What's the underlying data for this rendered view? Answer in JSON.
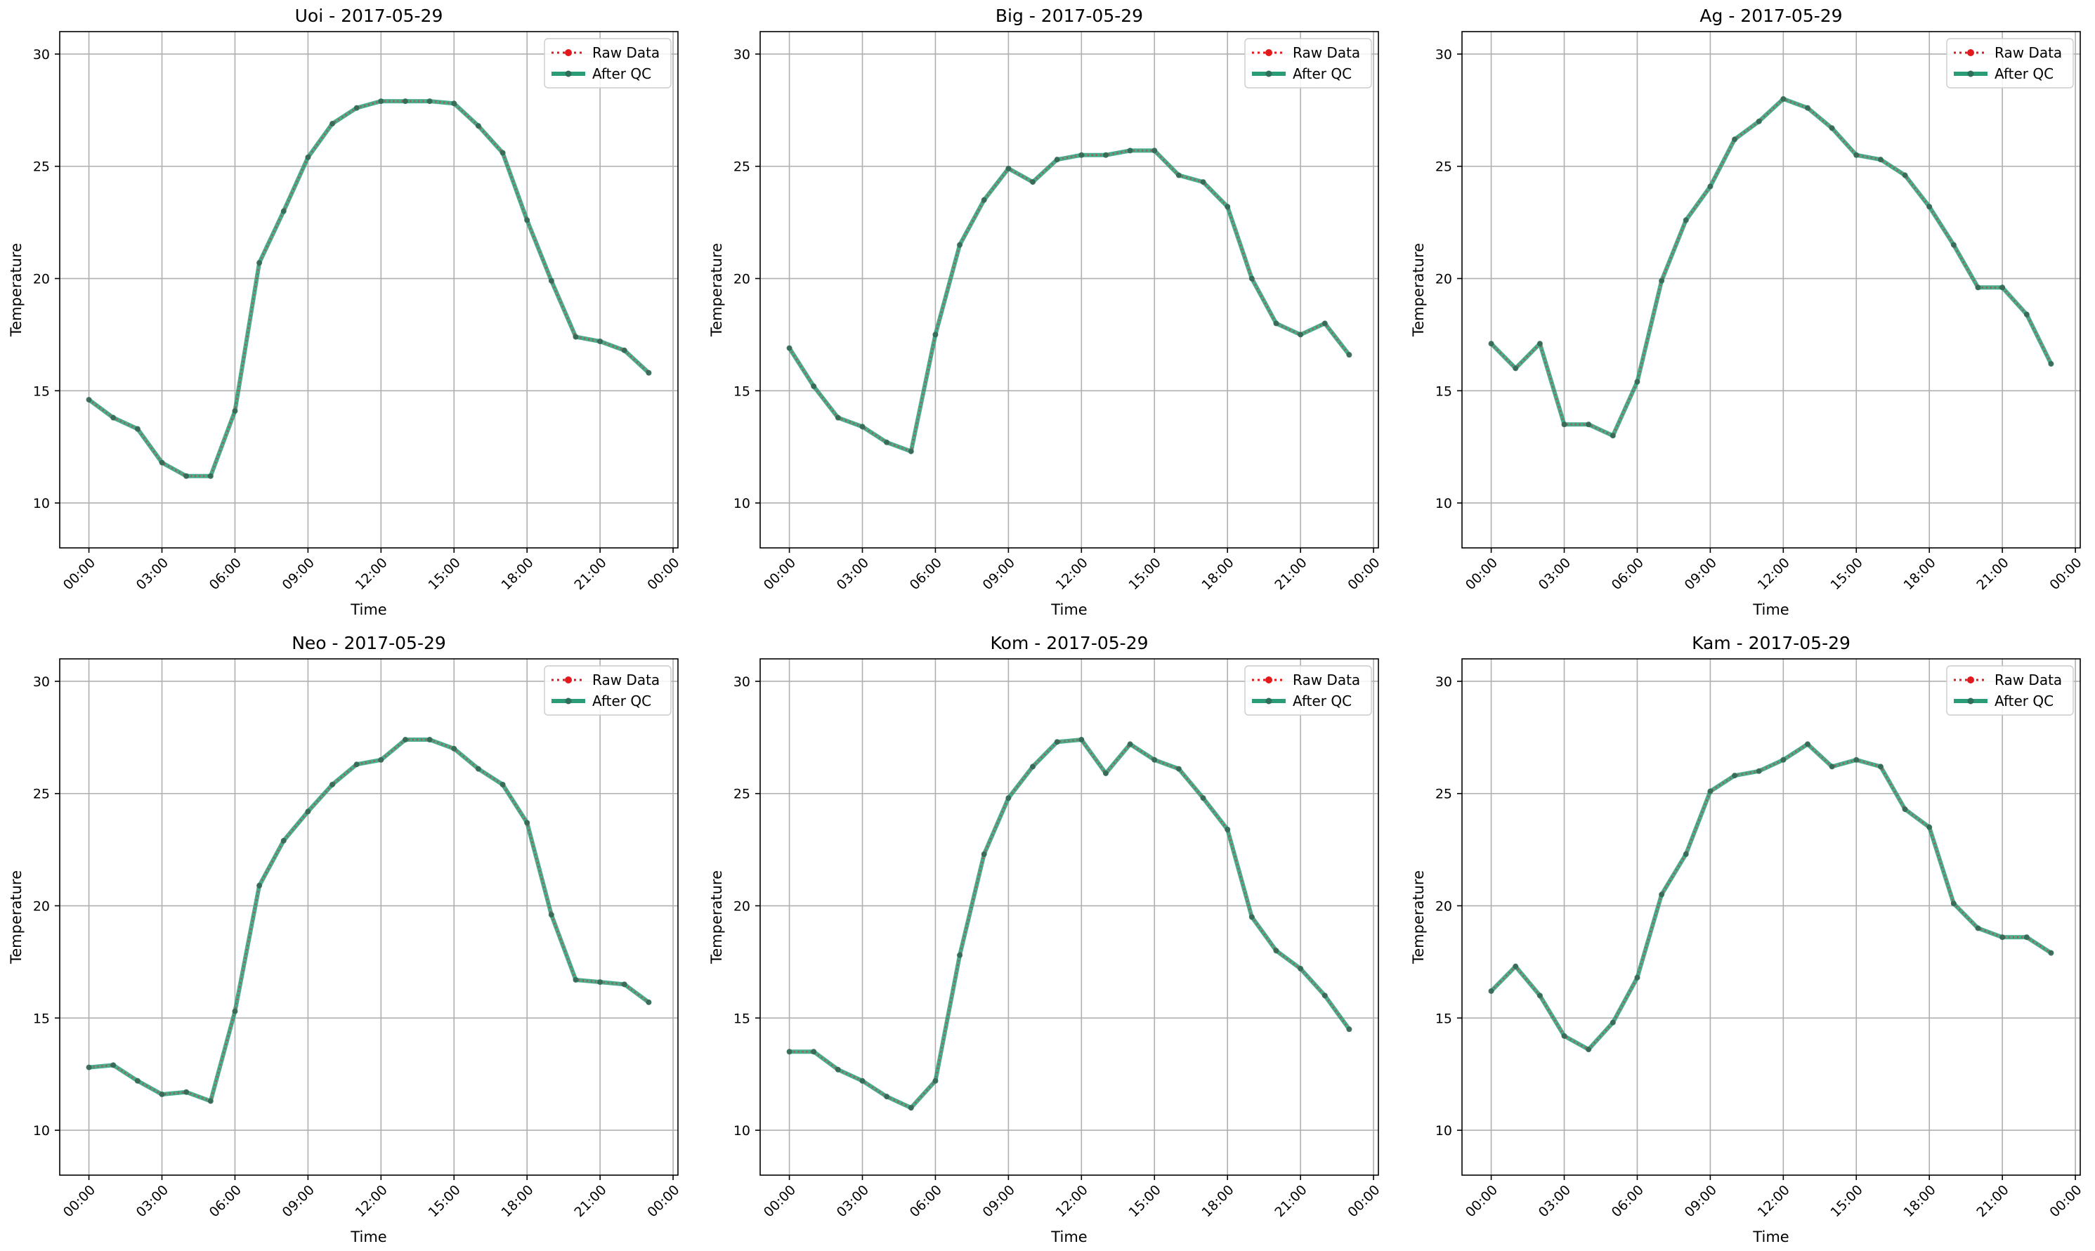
{
  "colors": {
    "raw": "#e31a1c",
    "qc": "#2a9d78",
    "grid": "#b0b0b0",
    "axes": "#000000"
  },
  "chart_data": [
    {
      "type": "line",
      "title": "Uoi - 2017-05-29",
      "xlabel": "Time",
      "ylabel": "Temperature",
      "x": [
        0,
        1,
        2,
        3,
        4,
        5,
        6,
        7,
        8,
        9,
        10,
        11,
        12,
        13,
        14,
        15,
        16,
        17,
        18,
        19,
        20,
        21,
        22,
        23
      ],
      "x_tick_labels": [
        "00:00",
        "03:00",
        "06:00",
        "09:00",
        "12:00",
        "15:00",
        "18:00",
        "21:00",
        "00:00"
      ],
      "y_ticks": [
        10,
        15,
        20,
        25,
        30
      ],
      "ylim": [
        8,
        31
      ],
      "xlim": [
        -1.2,
        24.2
      ],
      "grid": true,
      "legend": "top-right",
      "series": [
        {
          "name": "Raw Data",
          "values": [
            14.6,
            13.8,
            13.3,
            11.8,
            11.2,
            11.2,
            14.1,
            20.7,
            23.0,
            25.4,
            26.9,
            27.6,
            27.9,
            27.9,
            27.9,
            27.8,
            26.8,
            25.6,
            22.6,
            19.9,
            17.4,
            17.2,
            16.8,
            15.8
          ]
        },
        {
          "name": "After QC",
          "values": [
            14.6,
            13.8,
            13.3,
            11.8,
            11.2,
            11.2,
            14.1,
            20.7,
            23.0,
            25.4,
            26.9,
            27.6,
            27.9,
            27.9,
            27.9,
            27.8,
            26.8,
            25.6,
            22.6,
            19.9,
            17.4,
            17.2,
            16.8,
            15.8
          ]
        }
      ]
    },
    {
      "type": "line",
      "title": "Big - 2017-05-29",
      "xlabel": "Time",
      "ylabel": "Temperature",
      "x": [
        0,
        1,
        2,
        3,
        4,
        5,
        6,
        7,
        8,
        9,
        10,
        11,
        12,
        13,
        14,
        15,
        16,
        17,
        18,
        19,
        20,
        21,
        22,
        23
      ],
      "x_tick_labels": [
        "00:00",
        "03:00",
        "06:00",
        "09:00",
        "12:00",
        "15:00",
        "18:00",
        "21:00",
        "00:00"
      ],
      "y_ticks": [
        10,
        15,
        20,
        25,
        30
      ],
      "ylim": [
        8,
        31
      ],
      "xlim": [
        -1.2,
        24.2
      ],
      "grid": true,
      "legend": "top-right",
      "series": [
        {
          "name": "Raw Data",
          "values": [
            16.9,
            15.2,
            13.8,
            13.4,
            12.7,
            12.3,
            17.5,
            21.5,
            23.5,
            24.9,
            24.3,
            25.3,
            25.5,
            25.5,
            25.7,
            25.7,
            24.6,
            24.3,
            23.2,
            20.0,
            18.0,
            17.5,
            18.0,
            16.6
          ]
        },
        {
          "name": "After QC",
          "values": [
            16.9,
            15.2,
            13.8,
            13.4,
            12.7,
            12.3,
            17.5,
            21.5,
            23.5,
            24.9,
            24.3,
            25.3,
            25.5,
            25.5,
            25.7,
            25.7,
            24.6,
            24.3,
            23.2,
            20.0,
            18.0,
            17.5,
            18.0,
            16.6
          ]
        }
      ]
    },
    {
      "type": "line",
      "title": "Ag - 2017-05-29",
      "xlabel": "Time",
      "ylabel": "Temperature",
      "x": [
        0,
        1,
        2,
        3,
        4,
        5,
        6,
        7,
        8,
        9,
        10,
        11,
        12,
        13,
        14,
        15,
        16,
        17,
        18,
        19,
        20,
        21,
        22,
        23
      ],
      "x_tick_labels": [
        "00:00",
        "03:00",
        "06:00",
        "09:00",
        "12:00",
        "15:00",
        "18:00",
        "21:00",
        "00:00"
      ],
      "y_ticks": [
        10,
        15,
        20,
        25,
        30
      ],
      "ylim": [
        8,
        31
      ],
      "xlim": [
        -1.2,
        24.2
      ],
      "grid": true,
      "legend": "top-right",
      "series": [
        {
          "name": "Raw Data",
          "values": [
            17.1,
            16.0,
            17.1,
            13.5,
            13.5,
            13.0,
            15.4,
            19.9,
            22.6,
            24.1,
            26.2,
            27.0,
            28.0,
            27.6,
            26.7,
            25.5,
            25.3,
            24.6,
            23.2,
            21.5,
            19.6,
            19.6,
            18.4,
            16.2
          ]
        },
        {
          "name": "After QC",
          "values": [
            17.1,
            16.0,
            17.1,
            13.5,
            13.5,
            13.0,
            15.4,
            19.9,
            22.6,
            24.1,
            26.2,
            27.0,
            28.0,
            27.6,
            26.7,
            25.5,
            25.3,
            24.6,
            23.2,
            21.5,
            19.6,
            19.6,
            18.4,
            16.2
          ]
        }
      ]
    },
    {
      "type": "line",
      "title": "Neo - 2017-05-29",
      "xlabel": "Time",
      "ylabel": "Temperature",
      "x": [
        0,
        1,
        2,
        3,
        4,
        5,
        6,
        7,
        8,
        9,
        10,
        11,
        12,
        13,
        14,
        15,
        16,
        17,
        18,
        19,
        20,
        21,
        22,
        23
      ],
      "x_tick_labels": [
        "00:00",
        "03:00",
        "06:00",
        "09:00",
        "12:00",
        "15:00",
        "18:00",
        "21:00",
        "00:00"
      ],
      "y_ticks": [
        10,
        15,
        20,
        25,
        30
      ],
      "ylim": [
        8,
        31
      ],
      "xlim": [
        -1.2,
        24.2
      ],
      "grid": true,
      "legend": "top-right",
      "series": [
        {
          "name": "Raw Data",
          "values": [
            12.8,
            12.9,
            12.2,
            11.6,
            11.7,
            11.3,
            15.3,
            20.9,
            22.9,
            24.2,
            25.4,
            26.3,
            26.5,
            27.4,
            27.4,
            27.0,
            26.1,
            25.4,
            23.7,
            19.6,
            16.7,
            16.6,
            16.5,
            15.7
          ]
        },
        {
          "name": "After QC",
          "values": [
            12.8,
            12.9,
            12.2,
            11.6,
            11.7,
            11.3,
            15.3,
            20.9,
            22.9,
            24.2,
            25.4,
            26.3,
            26.5,
            27.4,
            27.4,
            27.0,
            26.1,
            25.4,
            23.7,
            19.6,
            16.7,
            16.6,
            16.5,
            15.7
          ]
        }
      ]
    },
    {
      "type": "line",
      "title": "Kom - 2017-05-29",
      "xlabel": "Time",
      "ylabel": "Temperature",
      "x": [
        0,
        1,
        2,
        3,
        4,
        5,
        6,
        7,
        8,
        9,
        10,
        11,
        12,
        13,
        14,
        15,
        16,
        17,
        18,
        19,
        20,
        21,
        22,
        23
      ],
      "x_tick_labels": [
        "00:00",
        "03:00",
        "06:00",
        "09:00",
        "12:00",
        "15:00",
        "18:00",
        "21:00",
        "00:00"
      ],
      "y_ticks": [
        10,
        15,
        20,
        25,
        30
      ],
      "ylim": [
        8,
        31
      ],
      "xlim": [
        -1.2,
        24.2
      ],
      "grid": true,
      "legend": "top-right",
      "series": [
        {
          "name": "Raw Data",
          "values": [
            13.5,
            13.5,
            12.7,
            12.2,
            11.5,
            11.0,
            12.2,
            17.8,
            22.3,
            24.8,
            26.2,
            27.3,
            27.4,
            25.9,
            27.2,
            26.5,
            26.1,
            24.8,
            23.4,
            19.5,
            18.0,
            17.2,
            16.0,
            14.5
          ]
        },
        {
          "name": "After QC",
          "values": [
            13.5,
            13.5,
            12.7,
            12.2,
            11.5,
            11.0,
            12.2,
            17.8,
            22.3,
            24.8,
            26.2,
            27.3,
            27.4,
            25.9,
            27.2,
            26.5,
            26.1,
            24.8,
            23.4,
            19.5,
            18.0,
            17.2,
            16.0,
            14.5
          ]
        }
      ]
    },
    {
      "type": "line",
      "title": "Kam - 2017-05-29",
      "xlabel": "Time",
      "ylabel": "Temperature",
      "x": [
        0,
        1,
        2,
        3,
        4,
        5,
        6,
        7,
        8,
        9,
        10,
        11,
        12,
        13,
        14,
        15,
        16,
        17,
        18,
        19,
        20,
        21,
        22,
        23
      ],
      "x_tick_labels": [
        "00:00",
        "03:00",
        "06:00",
        "09:00",
        "12:00",
        "15:00",
        "18:00",
        "21:00",
        "00:00"
      ],
      "y_ticks": [
        10,
        15,
        20,
        25,
        30
      ],
      "ylim": [
        8,
        31
      ],
      "xlim": [
        -1.2,
        24.2
      ],
      "grid": true,
      "legend": "top-right",
      "series": [
        {
          "name": "Raw Data",
          "values": [
            16.2,
            17.3,
            16.0,
            14.2,
            13.6,
            14.8,
            16.8,
            20.5,
            22.3,
            25.1,
            25.8,
            26.0,
            26.5,
            27.2,
            26.2,
            26.5,
            26.2,
            24.3,
            23.5,
            20.1,
            19.0,
            18.6,
            18.6,
            17.9
          ]
        },
        {
          "name": "After QC",
          "values": [
            16.2,
            17.3,
            16.0,
            14.2,
            13.6,
            14.8,
            16.8,
            20.5,
            22.3,
            25.1,
            25.8,
            26.0,
            26.5,
            27.2,
            26.2,
            26.5,
            26.2,
            24.3,
            23.5,
            20.1,
            19.0,
            18.6,
            18.6,
            17.9
          ]
        }
      ]
    }
  ]
}
